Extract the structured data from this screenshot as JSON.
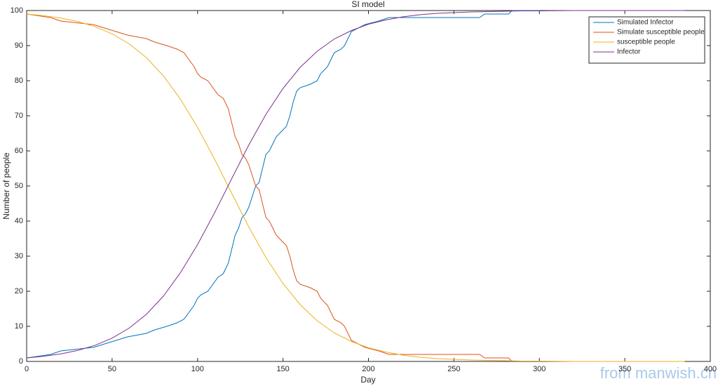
{
  "chart_data": {
    "type": "line",
    "title": "SI model",
    "xlabel": "Day",
    "ylabel": "Number of people",
    "xlim": [
      0,
      400
    ],
    "ylim": [
      0,
      100
    ],
    "xticks": [
      0,
      50,
      100,
      150,
      200,
      250,
      300,
      350,
      400
    ],
    "yticks": [
      0,
      10,
      20,
      30,
      40,
      50,
      60,
      70,
      80,
      90,
      100
    ],
    "grid": false,
    "legend": "upper right",
    "annotation": "from manwish.cn",
    "series": [
      {
        "name": "Simulated Infector",
        "color": "#0072BD",
        "x": [
          0,
          14,
          20,
          39,
          59,
          70,
          75,
          82,
          88,
          92,
          95,
          98,
          100,
          102,
          106,
          109,
          112,
          115,
          118,
          120,
          122,
          124,
          126,
          128,
          130,
          132,
          134,
          136,
          138,
          140,
          142,
          144,
          146,
          148,
          150,
          152,
          154,
          156,
          158,
          160,
          166,
          170,
          172,
          176,
          178,
          180,
          184,
          186,
          188,
          190,
          194,
          198,
          206,
          212,
          218,
          265,
          268,
          282,
          284,
          300
        ],
        "values": [
          1,
          2,
          3,
          4,
          7,
          8,
          9,
          10,
          11,
          12,
          14,
          16,
          18,
          19,
          20,
          22,
          24,
          25,
          28,
          32,
          36,
          38,
          41,
          42,
          44,
          47,
          50,
          51,
          55,
          59,
          60,
          62,
          64,
          65,
          66,
          67,
          70,
          74,
          77,
          78,
          79,
          80,
          82,
          84,
          86,
          88,
          89,
          90,
          92,
          94,
          95,
          96,
          97,
          98,
          98,
          98,
          99,
          99,
          100,
          100
        ]
      },
      {
        "name": "Simulate susceptible people",
        "color": "#D95319",
        "x": [
          0,
          14,
          20,
          39,
          59,
          70,
          75,
          82,
          88,
          92,
          95,
          98,
          100,
          102,
          106,
          109,
          112,
          115,
          118,
          120,
          122,
          124,
          126,
          128,
          130,
          132,
          134,
          136,
          138,
          140,
          142,
          144,
          146,
          148,
          150,
          152,
          154,
          156,
          158,
          160,
          166,
          170,
          172,
          176,
          178,
          180,
          184,
          186,
          188,
          190,
          194,
          198,
          206,
          212,
          218,
          265,
          268,
          282,
          284
        ],
        "values": [
          99,
          98,
          97,
          96,
          93,
          92,
          91,
          90,
          89,
          88,
          86,
          84,
          82,
          81,
          80,
          78,
          76,
          75,
          72,
          68,
          64,
          62,
          59,
          58,
          56,
          53,
          50,
          49,
          45,
          41,
          40,
          38,
          36,
          35,
          34,
          33,
          30,
          26,
          23,
          22,
          21,
          20,
          18,
          16,
          14,
          12,
          11,
          10,
          8,
          6,
          5,
          4,
          3,
          2,
          2,
          2,
          1,
          1,
          0
        ]
      },
      {
        "name": "susceptible people",
        "color": "#EDB120",
        "x": [
          0,
          10,
          20,
          30,
          40,
          50,
          60,
          70,
          80,
          90,
          100,
          110,
          120,
          130,
          140,
          150,
          160,
          170,
          180,
          190,
          200,
          210,
          220,
          230,
          240,
          250,
          260,
          270,
          280,
          290,
          300,
          320,
          340,
          360,
          385
        ],
        "values": [
          99,
          98.53,
          97.84,
          96.85,
          95.41,
          93.36,
          90.5,
          86.6,
          81.4,
          74.7,
          66.7,
          57.6,
          47.9,
          38.3,
          29.6,
          22.2,
          16.2,
          11.6,
          8.1,
          5.7,
          3.9,
          2.7,
          1.8,
          1.2,
          0.8,
          0.6,
          0.4,
          0.3,
          0.2,
          0.1,
          0.1,
          0,
          0,
          0,
          0
        ]
      },
      {
        "name": "Infector",
        "color": "#7E2F8E",
        "x": [
          0,
          10,
          20,
          30,
          40,
          50,
          60,
          70,
          80,
          90,
          100,
          110,
          120,
          130,
          140,
          150,
          160,
          170,
          180,
          190,
          200,
          210,
          220,
          230,
          240,
          250,
          260,
          270,
          280,
          290,
          300,
          320,
          340,
          360,
          385
        ],
        "values": [
          1,
          1.47,
          2.16,
          3.15,
          4.59,
          6.64,
          9.5,
          13.4,
          18.6,
          25.3,
          33.3,
          42.4,
          52.1,
          61.7,
          70.4,
          77.8,
          83.8,
          88.4,
          91.9,
          94.3,
          96.1,
          97.3,
          98.2,
          98.8,
          99.2,
          99.4,
          99.6,
          99.7,
          99.8,
          99.9,
          99.9,
          100,
          100,
          100,
          100
        ]
      }
    ]
  }
}
